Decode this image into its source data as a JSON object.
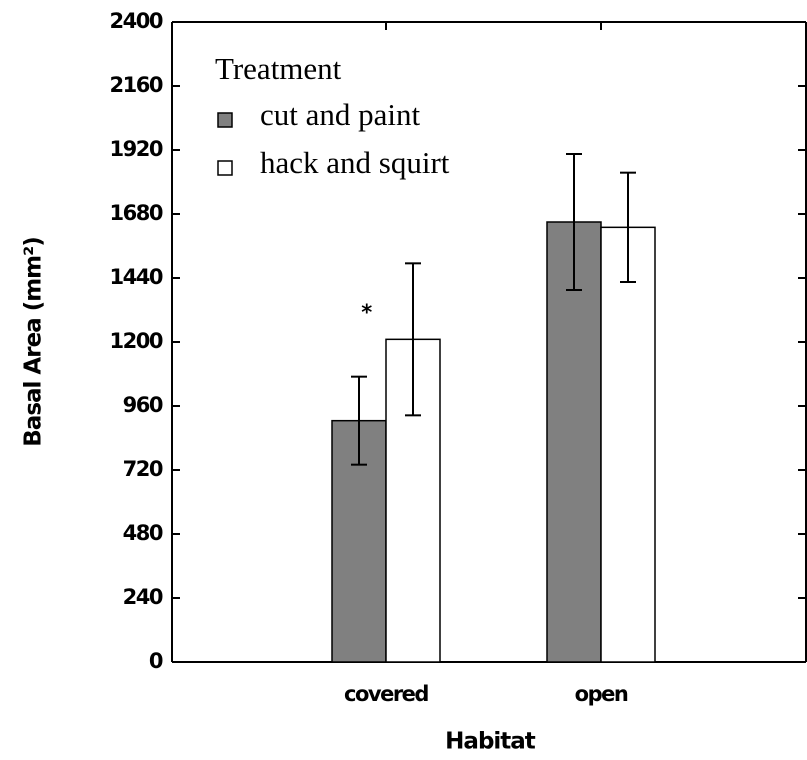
{
  "chart_data": {
    "type": "bar",
    "xlabel": "Habitat",
    "ylabel": "Basal Area (mm²)",
    "categories": [
      "covered",
      "open"
    ],
    "legend_title": "Treatment",
    "series": [
      {
        "name": "cut and paint",
        "color": "#808080",
        "values": [
          905,
          1650
        ],
        "errors": [
          165,
          255
        ]
      },
      {
        "name": "hack and squirt",
        "color": "#ffffff",
        "values": [
          1210,
          1630
        ],
        "errors": [
          285,
          205
        ]
      }
    ],
    "annotations": [
      {
        "text": "*",
        "category": "covered",
        "y": 1330
      }
    ],
    "ylim": [
      0,
      2400
    ],
    "yticks": [
      0,
      240,
      480,
      720,
      960,
      1200,
      1440,
      1680,
      1920,
      2160,
      2400
    ],
    "legend": "upper left"
  }
}
